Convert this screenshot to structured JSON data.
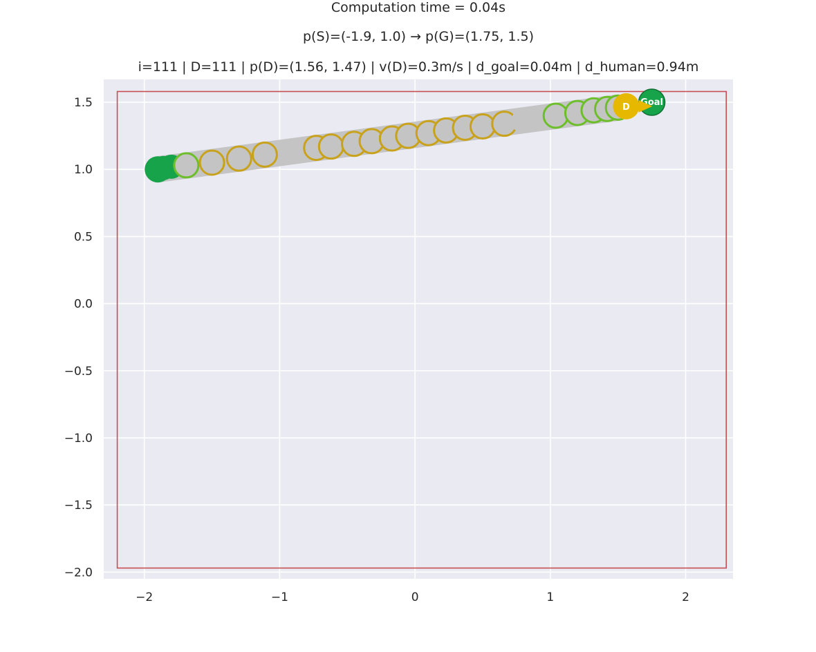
{
  "titles": {
    "line1": "Computation time = 0.04s",
    "line2": "p(S)=(-1.9, 1.0) → p(G)=(1.75, 1.5)",
    "line3": "i=111 | D=111 | p(D)=(1.56, 1.47) | v(D)=0.3m/s | d_goal=0.04m | d_human=0.94m"
  },
  "chart_data": {
    "type": "scatter",
    "xlim": [
      -2.3,
      2.35
    ],
    "ylim": [
      -2.05,
      1.67
    ],
    "xticks": [
      -2,
      -1,
      0,
      1,
      2
    ],
    "xtick_labels": [
      "−2",
      "−1",
      "0",
      "1",
      "2"
    ],
    "yticks": [
      1.5,
      1.0,
      0.5,
      0.0,
      -0.5,
      -1.0,
      -1.5,
      -2.0
    ],
    "ytick_labels": [
      "1.5",
      "1.0",
      "0.5",
      "0.0",
      "−0.5",
      "−1.0",
      "−1.5",
      "−2.0"
    ],
    "grid": true,
    "boundary": {
      "x": [
        -2.2,
        2.3
      ],
      "y": [
        -1.97,
        1.58
      ],
      "color": "#c44e52"
    },
    "start": {
      "x": -1.9,
      "y": 1.0
    },
    "goal": {
      "x": 1.75,
      "y": 1.5,
      "label": "Goal",
      "color": "#16a34a"
    },
    "drone": {
      "x": 1.56,
      "y": 1.47,
      "label": "D",
      "color": "#e6b800"
    },
    "trail": {
      "fill_color": "#c4c4c4",
      "start_color": "#16a34a",
      "green_ring": "#6cbf2a",
      "gold_ring": "#c9a21c",
      "points": [
        {
          "x": -1.86,
          "y": 1.01,
          "ring": "start"
        },
        {
          "x": -1.8,
          "y": 1.02,
          "ring": "start"
        },
        {
          "x": -1.69,
          "y": 1.03,
          "ring": "green"
        },
        {
          "x": -1.5,
          "y": 1.05,
          "ring": "gold"
        },
        {
          "x": -1.3,
          "y": 1.08,
          "ring": "gold"
        },
        {
          "x": -1.11,
          "y": 1.11,
          "ring": "gold"
        },
        {
          "x": -0.92,
          "y": 1.13,
          "ring": "none"
        },
        {
          "x": -0.73,
          "y": 1.16,
          "ring": "gold"
        },
        {
          "x": -0.62,
          "y": 1.17,
          "ring": "gold"
        },
        {
          "x": -0.45,
          "y": 1.19,
          "ring": "gold"
        },
        {
          "x": -0.32,
          "y": 1.21,
          "ring": "gold"
        },
        {
          "x": -0.17,
          "y": 1.23,
          "ring": "gold"
        },
        {
          "x": -0.05,
          "y": 1.25,
          "ring": "gold"
        },
        {
          "x": 0.1,
          "y": 1.27,
          "ring": "gold"
        },
        {
          "x": 0.23,
          "y": 1.29,
          "ring": "gold"
        },
        {
          "x": 0.37,
          "y": 1.31,
          "ring": "gold"
        },
        {
          "x": 0.5,
          "y": 1.32,
          "ring": "gold"
        },
        {
          "x": 0.66,
          "y": 1.34,
          "ring": "gold"
        },
        {
          "x": 0.8,
          "y": 1.36,
          "ring": "none"
        },
        {
          "x": 1.04,
          "y": 1.4,
          "ring": "green"
        },
        {
          "x": 1.2,
          "y": 1.42,
          "ring": "green"
        },
        {
          "x": 1.32,
          "y": 1.44,
          "ring": "green"
        },
        {
          "x": 1.42,
          "y": 1.45,
          "ring": "green"
        },
        {
          "x": 1.5,
          "y": 1.46,
          "ring": "green"
        }
      ]
    }
  }
}
